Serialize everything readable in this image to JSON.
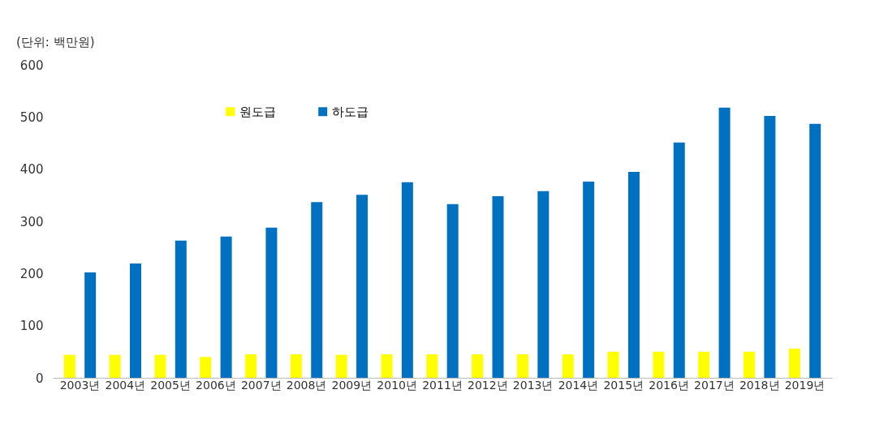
{
  "chart_data": {
    "type": "bar",
    "categories": [
      "2003년",
      "2004년",
      "2005년",
      "2006년",
      "2007년",
      "2008년",
      "2009년",
      "2010년",
      "2011년",
      "2012년",
      "2013년",
      "2014년",
      "2015년",
      "2016년",
      "2017년",
      "2018년",
      "2019년"
    ],
    "series": [
      {
        "name": "원도급",
        "color": "#ffff00",
        "values": [
          44,
          44,
          44,
          40,
          45,
          45,
          44,
          45,
          45,
          45,
          45,
          45,
          50,
          50,
          50,
          50,
          56
        ]
      },
      {
        "name": "하도급",
        "color": "#0070c0",
        "values": [
          202,
          219,
          263,
          271,
          288,
          337,
          351,
          375,
          333,
          348,
          358,
          376,
          395,
          451,
          518,
          502,
          487
        ]
      }
    ],
    "ylim": [
      0,
      600
    ],
    "yticks": [
      0,
      100,
      200,
      300,
      400,
      500,
      600
    ],
    "grid": false,
    "legend": "top",
    "annotations": [
      "(단위: 백만원)"
    ]
  }
}
